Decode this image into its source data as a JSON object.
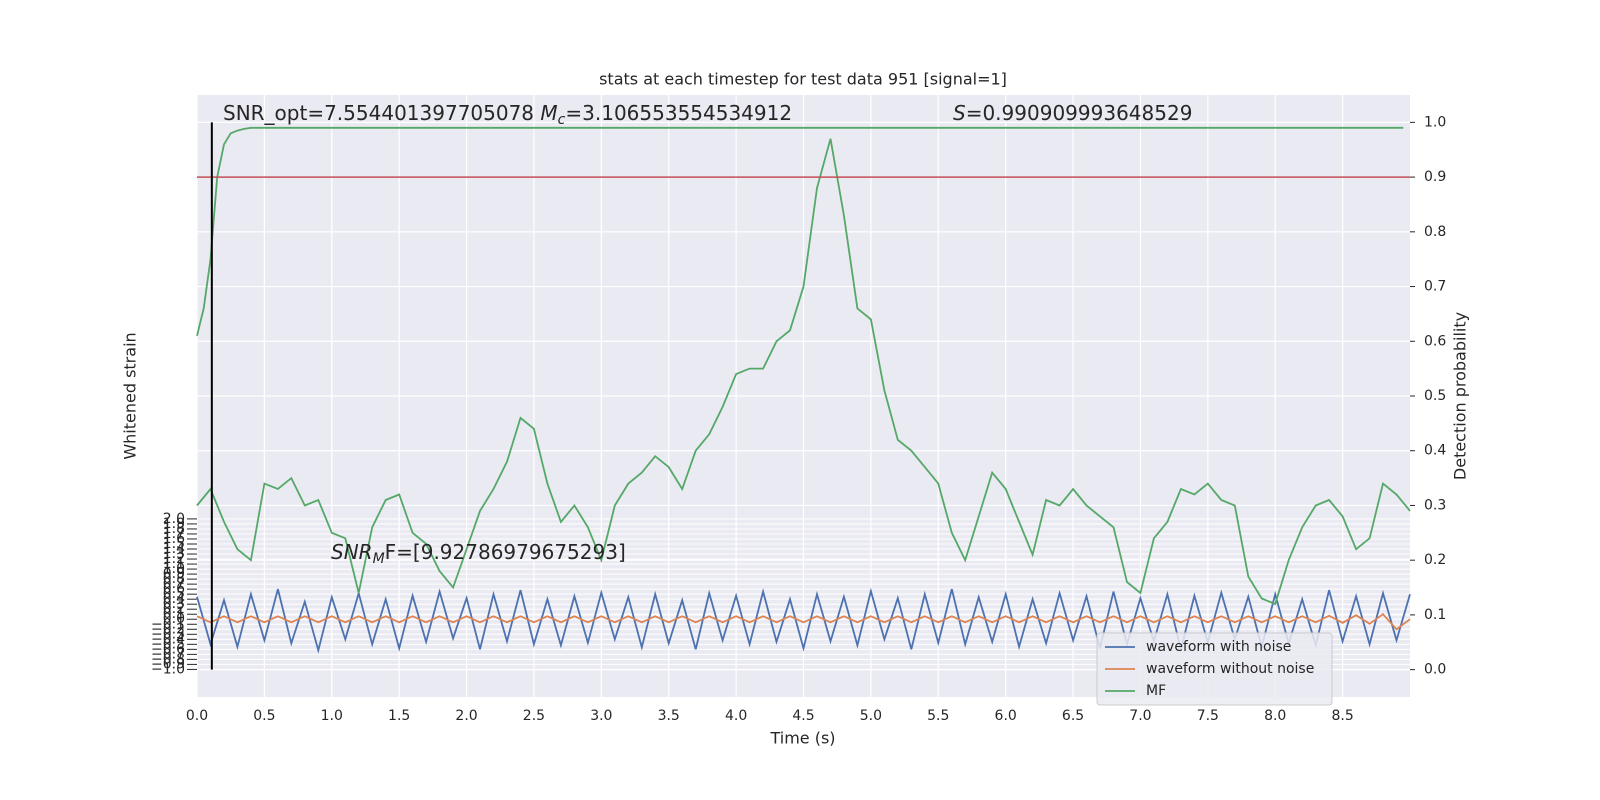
{
  "chart_data": {
    "type": "line",
    "title": "stats at each timestep for test data 951 [signal=1]",
    "xlabel": "Time (s)",
    "ylabel": "Whitened strain",
    "y2label": "Detection probability",
    "xlim": [
      0,
      9.0
    ],
    "ylim": [
      -1.55,
      10.45
    ],
    "y2lim": [
      -0.05,
      1.05
    ],
    "xticks": [
      {
        "value": 0,
        "label": "0.0"
      },
      0.5,
      {
        "value": 1,
        "label": "1.0"
      },
      1.5,
      {
        "value": 2,
        "label": "2.0"
      },
      2.5,
      {
        "value": 3,
        "label": "3.0"
      },
      3.5,
      {
        "value": 4,
        "label": "4.0"
      },
      4.5,
      {
        "value": 5,
        "label": "5.0"
      },
      5.5,
      {
        "value": 6,
        "label": "6.0"
      },
      6.5,
      {
        "value": 7,
        "label": "7.0"
      },
      7.5,
      {
        "value": 8,
        "label": "8.0"
      },
      8.5
    ],
    "yticks": [
      {
        "value": -1,
        "label": "−1.0"
      },
      {
        "value": -0.9,
        "label": "−0.9"
      },
      {
        "value": -0.8,
        "label": "−0.8"
      },
      {
        "value": -0.7,
        "label": "−0.7"
      },
      {
        "value": -0.6,
        "label": "−0.6"
      },
      {
        "value": -0.5,
        "label": "−0.5"
      },
      {
        "value": -0.4,
        "label": "−0.4"
      },
      {
        "value": -0.3,
        "label": "−0.3"
      },
      {
        "value": -0.2,
        "label": "−0.2"
      },
      {
        "value": -0.1,
        "label": "−0.1"
      },
      {
        "value": 0,
        "label": "0.0"
      },
      0.1,
      0.2,
      0.3,
      0.4,
      0.5,
      0.6,
      0.7,
      0.8,
      0.9,
      {
        "value": 1,
        "label": "1.0"
      },
      1.1,
      1.2,
      1.3,
      1.4,
      1.5,
      1.6,
      1.7,
      1.8,
      1.9,
      {
        "value": 2,
        "label": "2.0"
      }
    ],
    "y2ticks": [
      {
        "value": 0,
        "label": "0.0"
      },
      0.1,
      0.2,
      0.3,
      0.4,
      0.5,
      0.6,
      0.7,
      0.8,
      0.9,
      {
        "value": 1,
        "label": "1.0"
      }
    ],
    "grid": true,
    "legend": "lower right",
    "x": [
      0,
      0.1,
      0.2,
      0.3,
      0.4,
      0.5,
      0.6,
      0.7,
      0.8,
      0.9,
      1,
      1.1,
      1.2,
      1.3,
      1.4,
      1.5,
      1.6,
      1.7,
      1.8,
      1.9,
      2,
      2.1,
      2.2,
      2.3,
      2.4,
      2.5,
      2.6,
      2.7,
      2.8,
      2.9,
      3,
      3.1,
      3.2,
      3.3,
      3.4,
      3.5,
      3.6,
      3.7,
      3.8,
      3.9,
      4,
      4.1,
      4.2,
      4.3,
      4.4,
      4.5,
      4.6,
      4.7,
      4.8,
      4.9,
      5,
      5.1,
      5.2,
      5.3,
      5.4,
      5.5,
      5.6,
      5.7,
      5.8,
      5.9,
      6,
      6.1,
      6.2,
      6.3,
      6.4,
      6.5,
      6.6,
      6.7,
      6.8,
      6.9,
      7,
      7.1,
      7.2,
      7.3,
      7.4,
      7.5,
      7.6,
      7.7,
      7.8,
      7.9,
      8,
      8.1,
      8.2,
      8.3,
      8.4,
      8.5,
      8.6,
      8.7,
      8.8,
      8.9,
      9
    ],
    "series": [
      {
        "name": "waveform with noise",
        "color": "#4c72b0",
        "values": [
          0.45,
          -0.5,
          0.38,
          -0.55,
          0.5,
          -0.42,
          0.6,
          -0.48,
          0.35,
          -0.62,
          0.44,
          -0.4,
          0.52,
          -0.5,
          0.4,
          -0.58,
          0.47,
          -0.45,
          0.55,
          -0.38,
          0.42,
          -0.6,
          0.5,
          -0.44,
          0.58,
          -0.5,
          0.4,
          -0.52,
          0.46,
          -0.47,
          0.53,
          -0.4,
          0.44,
          -0.56,
          0.5,
          -0.48,
          0.38,
          -0.6,
          0.52,
          -0.42,
          0.47,
          -0.5,
          0.55,
          -0.45,
          0.4,
          -0.58,
          0.5,
          -0.44,
          0.45,
          -0.52,
          0.56,
          -0.4,
          0.42,
          -0.6,
          0.5,
          -0.47,
          0.6,
          -0.5,
          0.44,
          -0.45,
          0.5,
          -0.55,
          0.4,
          -0.48,
          0.52,
          -0.42,
          0.46,
          -0.58,
          0.55,
          -0.5,
          0.42,
          -0.44,
          0.5,
          -0.6,
          0.47,
          -0.46,
          0.53,
          -0.4,
          0.45,
          -0.55,
          0.5,
          -0.48,
          0.4,
          -0.52,
          0.58,
          -0.44,
          0.46,
          -0.5,
          0.52,
          -0.42,
          0.5
        ]
      },
      {
        "name": "waveform without noise",
        "color": "#dd8452",
        "values": [
          0.06,
          -0.06,
          0.06,
          -0.06,
          0.06,
          -0.06,
          0.06,
          -0.06,
          0.06,
          -0.06,
          0.06,
          -0.06,
          0.06,
          -0.06,
          0.06,
          -0.06,
          0.06,
          -0.06,
          0.06,
          -0.06,
          0.06,
          -0.06,
          0.06,
          -0.06,
          0.06,
          -0.06,
          0.06,
          -0.06,
          0.06,
          -0.06,
          0.06,
          -0.06,
          0.06,
          -0.06,
          0.06,
          -0.06,
          0.06,
          -0.06,
          0.06,
          -0.06,
          0.06,
          -0.06,
          0.06,
          -0.06,
          0.06,
          -0.06,
          0.06,
          -0.06,
          0.06,
          -0.06,
          0.06,
          -0.06,
          0.06,
          -0.06,
          0.06,
          -0.06,
          0.06,
          -0.06,
          0.06,
          -0.06,
          0.06,
          -0.06,
          0.06,
          -0.06,
          0.06,
          -0.06,
          0.06,
          -0.06,
          0.06,
          -0.06,
          0.06,
          -0.06,
          0.06,
          -0.06,
          0.06,
          -0.06,
          0.06,
          -0.06,
          0.06,
          -0.06,
          0.06,
          -0.06,
          0.06,
          -0.06,
          0.07,
          -0.07,
          0.08,
          -0.09,
          0.1,
          -0.2,
          0
        ]
      },
      {
        "name": "MF",
        "color": "#55a868",
        "axis": "y2",
        "values": [
          0.3,
          0.33,
          0.27,
          0.22,
          0.2,
          0.34,
          0.33,
          0.35,
          0.3,
          0.31,
          0.25,
          0.24,
          0.14,
          0.26,
          0.31,
          0.32,
          0.25,
          0.23,
          0.18,
          0.15,
          0.22,
          0.29,
          0.33,
          0.38,
          0.46,
          0.44,
          0.34,
          0.27,
          0.3,
          0.26,
          0.2,
          0.3,
          0.34,
          0.36,
          0.39,
          0.37,
          0.33,
          0.4,
          0.43,
          0.48,
          0.54,
          0.55,
          0.55,
          0.6,
          0.62,
          0.7,
          0.88,
          0.97,
          0.83,
          0.66,
          0.64,
          0.51,
          0.42,
          0.4,
          0.37,
          0.34,
          0.25,
          0.2,
          0.28,
          0.36,
          0.33,
          0.27,
          0.21,
          0.31,
          0.3,
          0.33,
          0.3,
          0.28,
          0.26,
          0.16,
          0.14,
          0.24,
          0.27,
          0.33,
          0.32,
          0.34,
          0.31,
          0.3,
          0.17,
          0.13,
          0.12,
          0.2,
          0.26,
          0.3,
          0.31,
          0.28,
          0.22,
          0.24,
          0.34,
          0.32,
          0.29
        ]
      },
      {
        "color": "#55a868",
        "axis": "y2",
        "x": [
          0,
          0.05,
          0.1,
          0.15,
          0.2,
          0.25,
          0.3,
          0.35,
          0.4,
          0.5,
          1,
          2,
          4,
          6,
          8,
          8.95
        ],
        "values": [
          0.61,
          0.66,
          0.75,
          0.9,
          0.96,
          0.98,
          0.985,
          0.988,
          0.99,
          0.99,
          0.99,
          0.99,
          0.99,
          0.99,
          0.99,
          0.99
        ]
      }
    ],
    "hline": {
      "value": 0.9,
      "axis": "y2",
      "color": "#c44e52"
    },
    "vline": {
      "x": 0.11,
      "ymin": 0,
      "ymax": 1,
      "axis": "y2",
      "color": "#000000"
    },
    "annotations": [
      {
        "parts": [
          {
            "text": "SNR_opt=7.554401397705078 "
          },
          {
            "text": "M",
            "italic": true
          },
          {
            "text": "c",
            "italic": true,
            "sub": true
          },
          {
            "text": "=3.106553554534912"
          }
        ]
      },
      {
        "parts": [
          {
            "text": "S",
            "italic": true
          },
          {
            "text": "=0.990909993648529"
          }
        ]
      },
      {
        "parts": [
          {
            "text": "SNR",
            "italic": true
          },
          {
            "text": "M",
            "italic": true,
            "sub": true
          },
          {
            "text": "F=[9.92786979675293]"
          }
        ]
      }
    ]
  }
}
